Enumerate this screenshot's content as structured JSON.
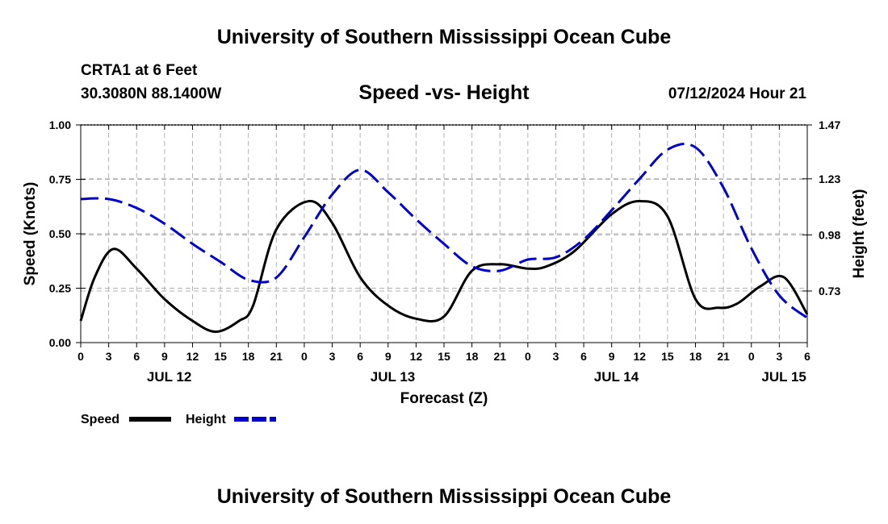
{
  "page": {
    "title_top": "University of Southern Mississippi Ocean Cube",
    "title_bottom": "University of Southern Mississippi Ocean Cube",
    "station": "CRTA1 at 6 Feet",
    "coordinates": "30.3080N  88.1400W",
    "chart_title": "Speed -vs- Height",
    "timestamp": "07/12/2024 Hour 21"
  },
  "chart_data": {
    "type": "line",
    "title": "Speed -vs- Height",
    "xlabel": "Forecast (Z)",
    "ylabel": "Speed (Knots)",
    "y2label": "Height (feet)",
    "xlim": [
      0,
      78
    ],
    "ylim": [
      0,
      1.0
    ],
    "y2lim": [
      0.5,
      1.47
    ],
    "grid": true,
    "legend_position": "bottom-left",
    "x_ticks": [
      0,
      3,
      6,
      9,
      12,
      15,
      18,
      21,
      24,
      27,
      30,
      33,
      36,
      39,
      42,
      45,
      48,
      51,
      54,
      57,
      60,
      63,
      66,
      69,
      72,
      75,
      78
    ],
    "x_tick_labels": [
      "0",
      "3",
      "6",
      "9",
      "12",
      "15",
      "18",
      "21",
      "0",
      "3",
      "6",
      "9",
      "12",
      "15",
      "18",
      "21",
      "0",
      "3",
      "6",
      "9",
      "12",
      "15",
      "18",
      "21",
      "0",
      "3",
      "6"
    ],
    "date_labels": [
      {
        "x": 9.5,
        "label": "JUL 12"
      },
      {
        "x": 33.5,
        "label": "JUL 13"
      },
      {
        "x": 57.5,
        "label": "JUL 14"
      },
      {
        "x": 75.5,
        "label": "JUL 15"
      }
    ],
    "y_ticks": [
      0,
      0.25,
      0.5,
      0.75,
      1.0
    ],
    "y_tick_labels": [
      "0.00",
      "0.25",
      "0.50",
      "0.75",
      "1.00"
    ],
    "y2_ticks": [
      0.73,
      0.98,
      1.23,
      1.47
    ],
    "y2_tick_labels": [
      "0.73",
      "0.98",
      "1.23",
      "1.47"
    ],
    "series": [
      {
        "name": "Speed",
        "axis": "left",
        "color": "#000000",
        "dash": "solid",
        "x": [
          0,
          1.5,
          3.5,
          6,
          9,
          12,
          14.5,
          17,
          18.5,
          21,
          24.5,
          27,
          30,
          33,
          36,
          39,
          42,
          45,
          48,
          50,
          53,
          57,
          60,
          63,
          66,
          68.5,
          70.5,
          73,
          75.5,
          78
        ],
        "y": [
          0.1,
          0.3,
          0.43,
          0.34,
          0.2,
          0.1,
          0.05,
          0.1,
          0.17,
          0.52,
          0.65,
          0.55,
          0.3,
          0.17,
          0.11,
          0.12,
          0.33,
          0.36,
          0.34,
          0.35,
          0.42,
          0.59,
          0.65,
          0.58,
          0.2,
          0.16,
          0.18,
          0.26,
          0.3,
          0.13
        ]
      },
      {
        "name": "Height",
        "axis": "right",
        "color": "#0000cc",
        "dash": "dashed",
        "x": [
          0,
          3,
          6,
          9,
          12,
          15,
          18,
          21,
          24,
          27,
          30,
          33,
          36,
          39,
          42,
          45,
          48,
          51,
          54,
          57,
          60,
          63,
          66,
          69,
          72,
          75,
          78
        ],
        "y": [
          1.14,
          1.14,
          1.1,
          1.03,
          0.94,
          0.86,
          0.78,
          0.79,
          0.97,
          1.16,
          1.27,
          1.17,
          1.05,
          0.94,
          0.84,
          0.82,
          0.87,
          0.88,
          0.96,
          1.09,
          1.23,
          1.36,
          1.37,
          1.19,
          0.92,
          0.71,
          0.61
        ]
      }
    ]
  }
}
